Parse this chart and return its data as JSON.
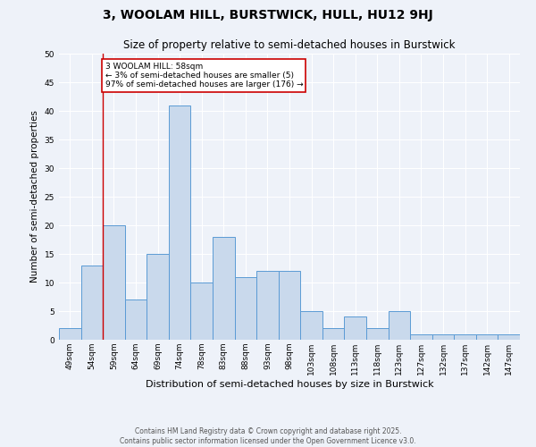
{
  "title": "3, WOOLAM HILL, BURSTWICK, HULL, HU12 9HJ",
  "subtitle": "Size of property relative to semi-detached houses in Burstwick",
  "xlabel": "Distribution of semi-detached houses by size in Burstwick",
  "ylabel": "Number of semi-detached properties",
  "categories": [
    "49sqm",
    "54sqm",
    "59sqm",
    "64sqm",
    "69sqm",
    "74sqm",
    "78sqm",
    "83sqm",
    "88sqm",
    "93sqm",
    "98sqm",
    "103sqm",
    "108sqm",
    "113sqm",
    "118sqm",
    "123sqm",
    "127sqm",
    "132sqm",
    "137sqm",
    "142sqm",
    "147sqm"
  ],
  "values": [
    2,
    13,
    20,
    7,
    15,
    41,
    10,
    18,
    11,
    12,
    12,
    5,
    2,
    4,
    2,
    5,
    1,
    1,
    1,
    1,
    1
  ],
  "bar_color": "#c9d9ec",
  "bar_edge_color": "#5b9bd5",
  "annotation_text": "3 WOOLAM HILL: 58sqm\n← 3% of semi-detached houses are smaller (5)\n97% of semi-detached houses are larger (176) →",
  "annotation_box_color": "#ffffff",
  "annotation_box_edge_color": "#cc0000",
  "annotation_text_size": 6.5,
  "vertical_line_color": "#cc0000",
  "ylim": [
    0,
    50
  ],
  "yticks": [
    0,
    5,
    10,
    15,
    20,
    25,
    30,
    35,
    40,
    45,
    50
  ],
  "background_color": "#eef2f9",
  "grid_color": "#ffffff",
  "footer_text": "Contains HM Land Registry data © Crown copyright and database right 2025.\nContains public sector information licensed under the Open Government Licence v3.0.",
  "title_fontsize": 10,
  "subtitle_fontsize": 8.5,
  "xlabel_fontsize": 8,
  "ylabel_fontsize": 7.5,
  "tick_fontsize": 6.5,
  "footer_fontsize": 5.5
}
